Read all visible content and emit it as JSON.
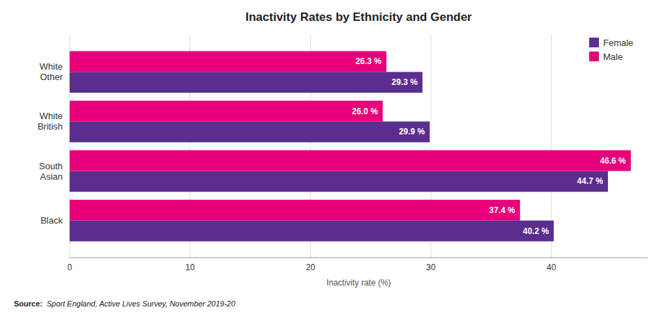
{
  "chart_data": {
    "type": "bar",
    "orientation": "horizontal",
    "title": "Inactivity Rates by Ethnicity and Gender",
    "categories": [
      "White\nOther",
      "White\nBritish",
      "South\nAsian",
      "Black"
    ],
    "series": [
      {
        "name": "Female",
        "color": "#5B2D8E",
        "values": [
          29.3,
          29.9,
          44.7,
          40.2
        ],
        "value_labels": [
          "29.3 %",
          "29.9 %",
          "44.7 %",
          "40.2 %"
        ]
      },
      {
        "name": "Male",
        "color": "#E8007A",
        "values": [
          26.3,
          26.0,
          46.6,
          37.4
        ],
        "value_labels": [
          "26.3 %",
          "26.0 %",
          "46.6 %",
          "37.4 %"
        ]
      }
    ],
    "xlabel": "Inactivity rate (%)",
    "xlim": [
      0,
      48
    ],
    "xticks": [
      0,
      10,
      20,
      30,
      40
    ],
    "grid": true,
    "legend": "upper right",
    "data_labels": true,
    "annotations": [
      "Source:",
      "Sport England, Active Lives Survey, November 2019-20"
    ]
  }
}
